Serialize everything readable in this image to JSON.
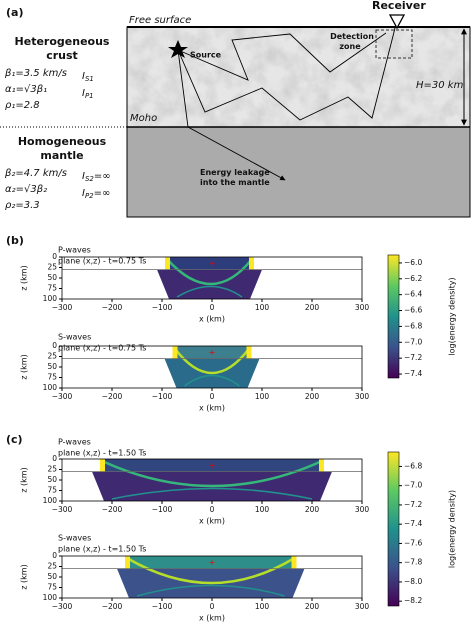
{
  "panel_a": {
    "label": "(a)",
    "free_surface": "Free surface",
    "receiver": "Receiver",
    "source": "Source",
    "detection_zone": [
      "Detection",
      "zone"
    ],
    "thickness": "H=30 km",
    "moho": "Moho",
    "leakage": [
      "Energy leakage",
      "into the mantle"
    ],
    "crust": {
      "title": [
        "Heterogeneous",
        "crust"
      ],
      "params": [
        "β₁=3.5 km/s",
        "α₁=√3β₁",
        "ρ₁=2.8"
      ],
      "intensities": [
        {
          "main": "I",
          "sub": "S1"
        },
        {
          "main": "I",
          "sub": "P1"
        }
      ]
    },
    "mantle": {
      "title": [
        "Homogeneous",
        "mantle"
      ],
      "params": [
        "β₂=4.7 km/s",
        "α₂=√3β₂",
        "ρ₂=3.3"
      ],
      "intensities": [
        {
          "main": "I",
          "sub": "S2",
          "tail": "=∞"
        },
        {
          "main": "I",
          "sub": "P2",
          "tail": "=∞"
        }
      ]
    }
  },
  "axes": {
    "xlabel": "x (km)",
    "ylabel": "z (km)",
    "xlim": [
      -300,
      300
    ],
    "ylim": [
      0,
      100
    ],
    "xticks": [
      {
        "value": -300,
        "label": "−300"
      },
      {
        "value": -200,
        "label": "−200"
      },
      {
        "value": -100,
        "label": "−100"
      },
      0,
      100,
      200,
      300
    ],
    "yticks": [
      0,
      25,
      50,
      75,
      100
    ]
  },
  "panels": [
    {
      "label": "(b)",
      "subplots": [
        {
          "title": [
            "P-waves",
            "plane (x,z) - t=0.75 Ts"
          ]
        },
        {
          "title": [
            "S-waves",
            "plane (x,z) - t=0.75 Ts"
          ]
        }
      ],
      "colorbar": {
        "label": "log(energy density)",
        "lim": [
          -7.45,
          -5.9
        ],
        "ticks": [
          {
            "value": -6.0,
            "label": "−6.0"
          },
          {
            "value": -6.2,
            "label": "−6.2"
          },
          {
            "value": -6.4,
            "label": "−6.4"
          },
          {
            "value": -6.6,
            "label": "−6.6"
          },
          {
            "value": -6.8,
            "label": "−6.8"
          },
          {
            "value": -7.0,
            "label": "−7.0"
          },
          {
            "value": -7.2,
            "label": "−7.2"
          },
          {
            "value": -7.4,
            "label": "−7.4"
          }
        ]
      }
    },
    {
      "label": "(c)",
      "subplots": [
        {
          "title": [
            "P-waves",
            "plane (x,z) - t=1.50 Ts"
          ]
        },
        {
          "title": [
            "S-waves",
            "plane (x,z) - t=1.50 Ts"
          ]
        }
      ],
      "colorbar": {
        "label": "log(energy density)",
        "lim": [
          -8.25,
          -6.65
        ],
        "ticks": [
          {
            "value": -6.8,
            "label": "−6.8"
          },
          {
            "value": -7.0,
            "label": "−7.0"
          },
          {
            "value": -7.2,
            "label": "−7.2"
          },
          {
            "value": -7.4,
            "label": "−7.4"
          },
          {
            "value": -7.6,
            "label": "−7.6"
          },
          {
            "value": -7.8,
            "label": "−7.8"
          },
          {
            "value": -8.0,
            "label": "−8.0"
          },
          {
            "value": -8.2,
            "label": "−8.2"
          }
        ]
      }
    }
  ]
}
